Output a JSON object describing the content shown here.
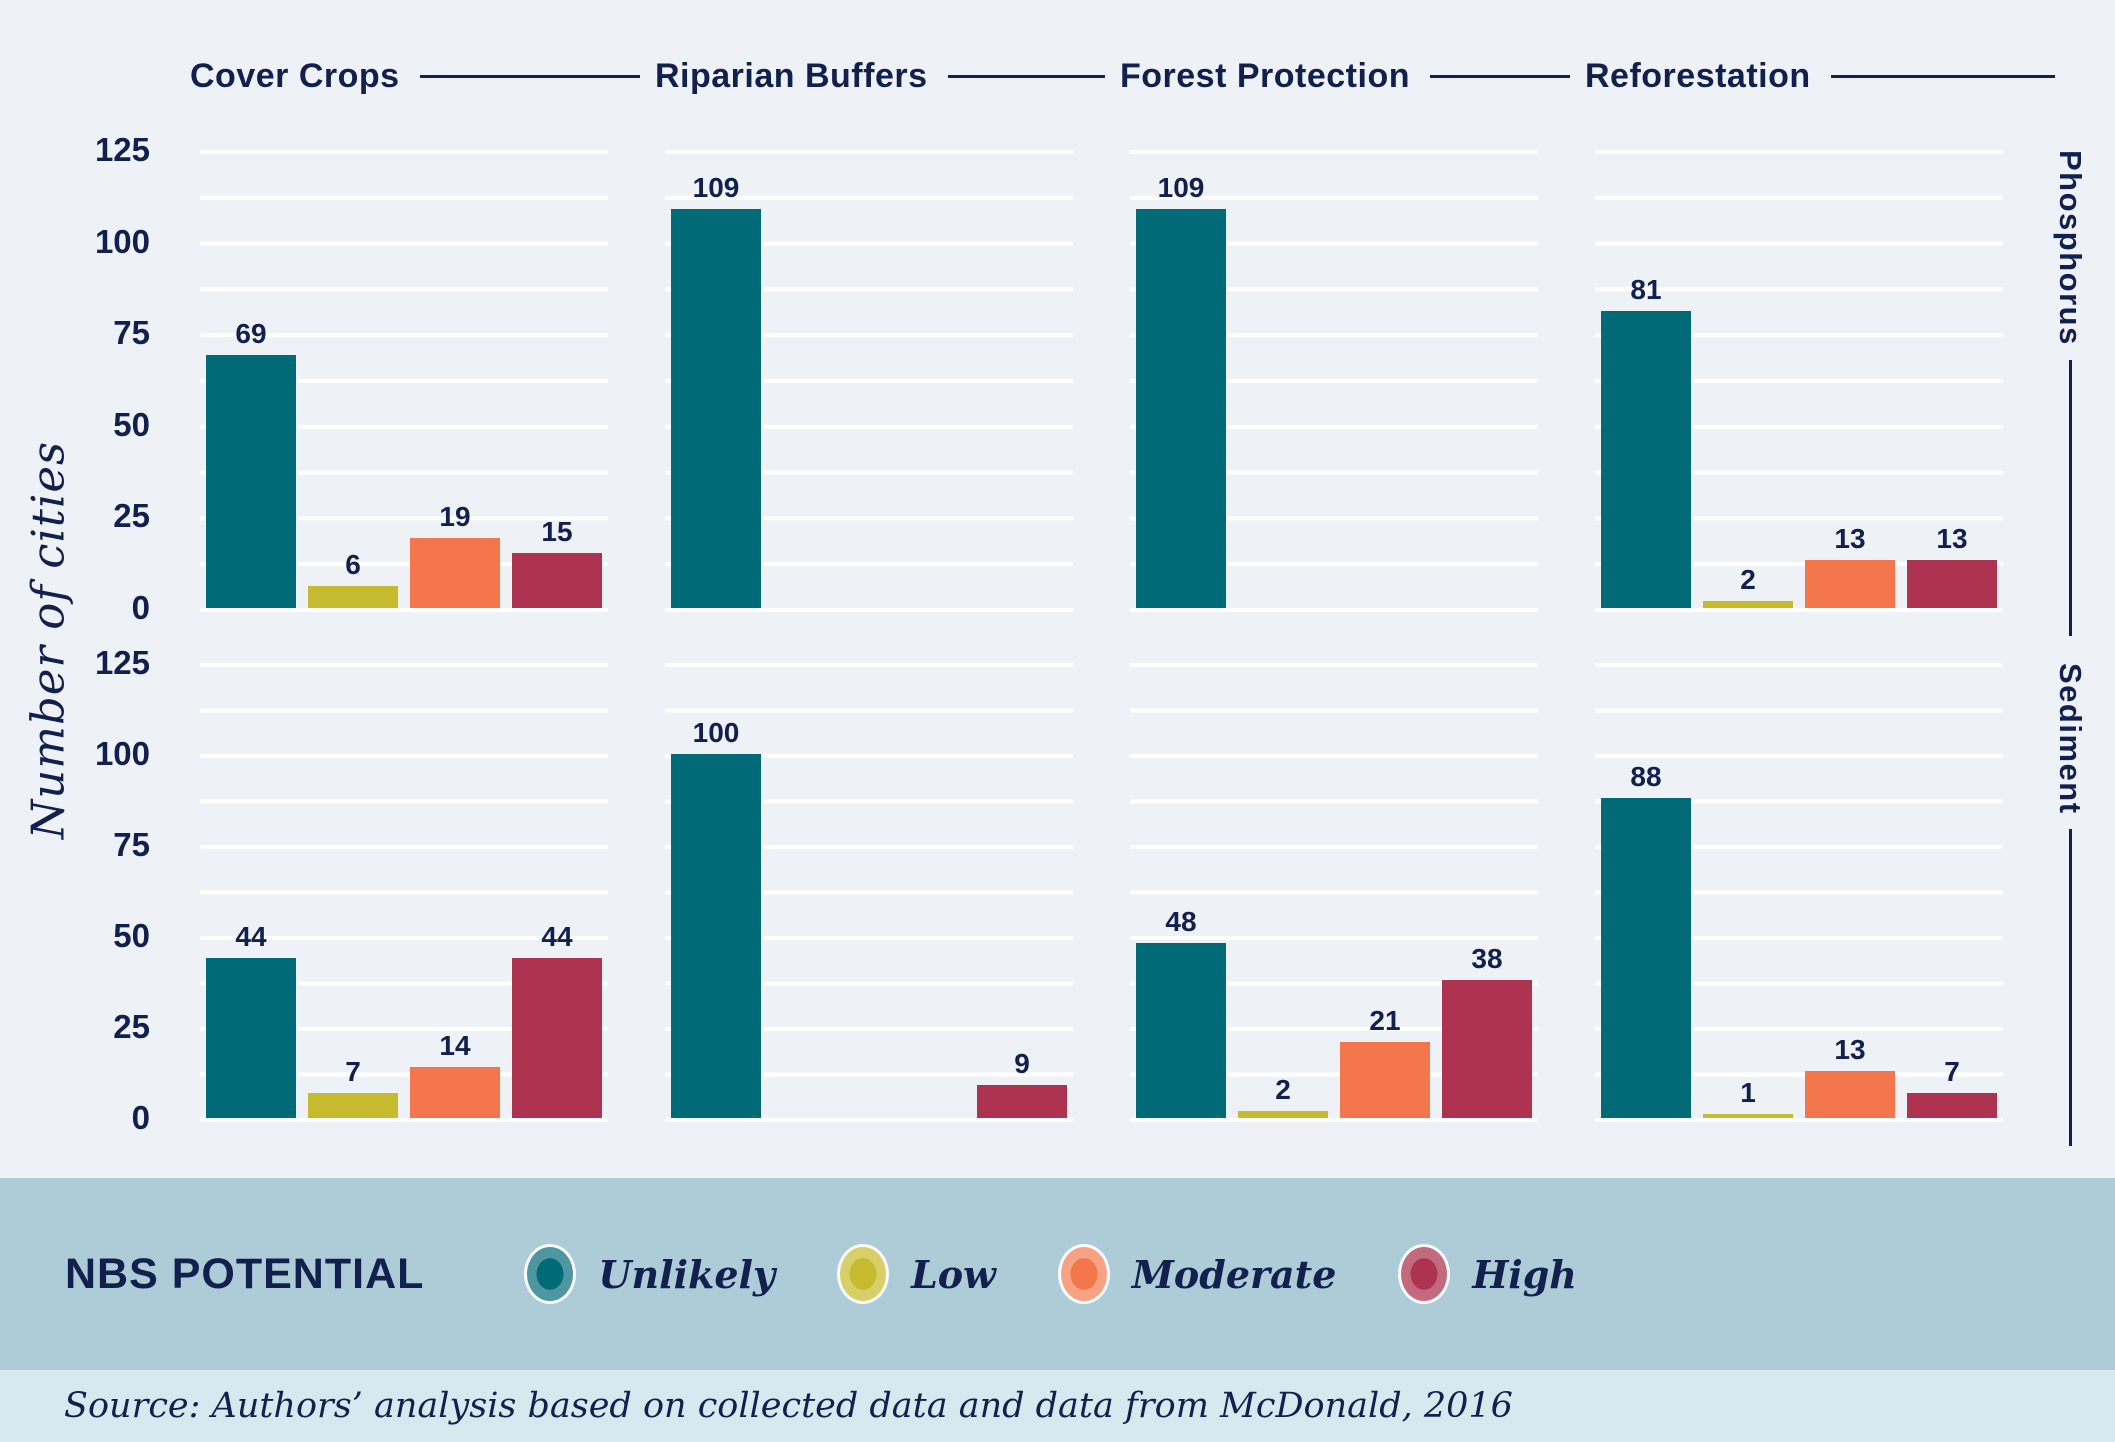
{
  "colors": {
    "navy_text": "#12204d",
    "plot_background": "#eef2f6",
    "gridline": "#ffffff",
    "legend_band_background": "#aecbd8",
    "source_strip_background": "#d6e9ef"
  },
  "y_axis": {
    "label": "Number of cities",
    "ticks": [
      0,
      25,
      50,
      75,
      100,
      125
    ]
  },
  "row_facets": [
    {
      "label": "Phosphorus"
    },
    {
      "label": "Sediment"
    }
  ],
  "legend": {
    "title": "NBS POTENTIAL",
    "items": [
      {
        "label": "Unlikely",
        "color": "#006b76",
        "ring": "#4e96a0"
      },
      {
        "label": "Low",
        "color": "#c6ba2e",
        "ring": "#d8cf68"
      },
      {
        "label": "Moderate",
        "color": "#f3764c",
        "ring": "#f7a283"
      },
      {
        "label": "High",
        "color": "#ad3350",
        "ring": "#c36a7e"
      }
    ]
  },
  "source": {
    "text": "Source: Authors’ analysis based on collected data and data from McDonald, 2016"
  },
  "chart_data": {
    "type": "bar",
    "title": "",
    "ylabel": "Number of cities",
    "ylim": [
      0,
      125
    ],
    "yticks": [
      0,
      25,
      50,
      75,
      100,
      125
    ],
    "minor_gridline_step": 12.5,
    "grid": "white horizontal gridlines every 12.5 units, per facet",
    "legend_position": "bottom band",
    "row_facets": [
      "Phosphorus",
      "Sediment"
    ],
    "col_facets": [
      "Cover Crops",
      "Riparian Buffers",
      "Forest Protection",
      "Reforestation"
    ],
    "series": [
      {
        "name": "Unlikely",
        "color": "#006b76"
      },
      {
        "name": "Low",
        "color": "#c6ba2e"
      },
      {
        "name": "Moderate",
        "color": "#f3764c"
      },
      {
        "name": "High",
        "color": "#ad3350"
      }
    ],
    "values": [
      [
        [
          69,
          6,
          19,
          15
        ],
        [
          109,
          null,
          null,
          null
        ],
        [
          109,
          null,
          null,
          null
        ],
        [
          81,
          2,
          13,
          13
        ]
      ],
      [
        [
          44,
          7,
          14,
          44
        ],
        [
          100,
          null,
          null,
          9
        ],
        [
          48,
          2,
          21,
          38
        ],
        [
          88,
          1,
          13,
          7
        ]
      ]
    ]
  }
}
